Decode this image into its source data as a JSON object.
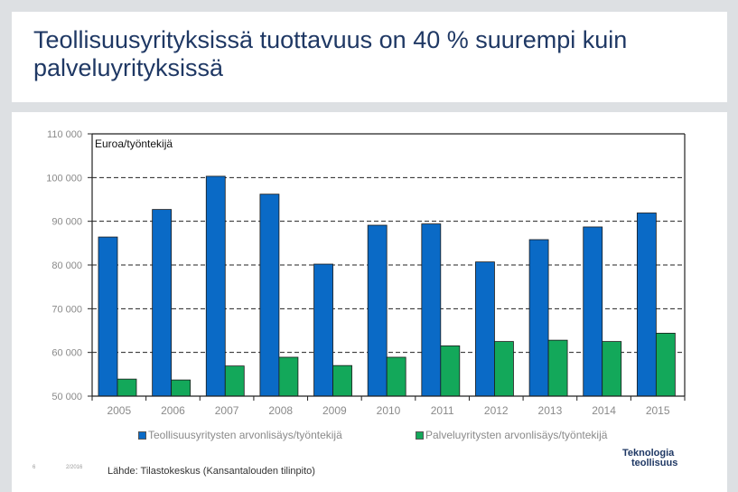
{
  "title": "Teollisuusyrityksissä tuottavuus on 40 % suurempi kuin palveluyrityksissä",
  "chart_data": {
    "type": "bar",
    "unit_label": "Euroa/työntekijä",
    "categories": [
      "2005",
      "2006",
      "2007",
      "2008",
      "2009",
      "2010",
      "2011",
      "2012",
      "2013",
      "2014",
      "2015"
    ],
    "series": [
      {
        "name": "Teollisuusyritysten arvonlisäys/työntekijä",
        "color": "#0a6ac6",
        "values": [
          86400,
          92700,
          100300,
          96200,
          80200,
          89100,
          89400,
          80700,
          85800,
          88700,
          91900
        ]
      },
      {
        "name": "Palveluyritysten arvonlisäys/työntekijä",
        "color": "#13a85a",
        "values": [
          53900,
          53700,
          56900,
          58900,
          57000,
          58900,
          61500,
          62500,
          62800,
          62500,
          64400
        ]
      }
    ],
    "ylim": [
      50000,
      110000
    ],
    "yticks": [
      "50 000",
      "60 000",
      "70 000",
      "80 000",
      "90 000",
      "100 000",
      "110 000"
    ],
    "ytick_values": [
      50000,
      60000,
      70000,
      80000,
      90000,
      100000,
      110000
    ],
    "gridlines": "dashed"
  },
  "footer": {
    "page_number": "6",
    "date": "2/2016",
    "source": "Lähde: Tilastokeskus (Kansantalouden tilinpito)",
    "logo_line1": "Teknologia",
    "logo_line2": "teollisuus"
  }
}
